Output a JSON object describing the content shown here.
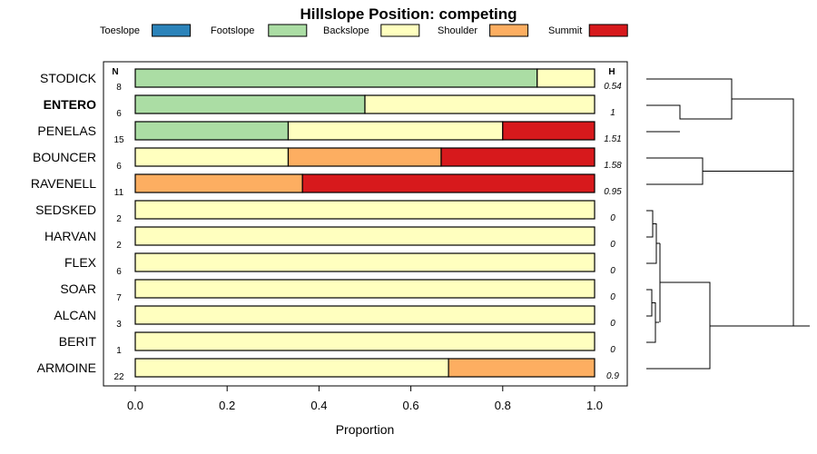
{
  "chart_data": {
    "type": "bar",
    "orientation": "horizontal",
    "stacked": true,
    "title": "Hillslope Position: competing",
    "xlabel": "Proportion",
    "xlim": [
      0,
      1
    ],
    "x_ticks": [
      "0.0",
      "0.2",
      "0.4",
      "0.6",
      "0.8",
      "1.0"
    ],
    "legend": {
      "placement": "top",
      "entries": [
        {
          "name": "Toeslope",
          "color": "#2b83ba"
        },
        {
          "name": "Footslope",
          "color": "#abdda4"
        },
        {
          "name": "Backslope",
          "color": "#ffffbf"
        },
        {
          "name": "Shoulder",
          "color": "#fdae61"
        },
        {
          "name": "Summit",
          "color": "#d7191c"
        }
      ]
    },
    "n_header": "N",
    "h_header": "H",
    "categories": [
      {
        "label": "STODICK",
        "n": "8",
        "h": "0.54",
        "bold": false,
        "values": [
          0,
          0.875,
          0.125,
          0,
          0
        ]
      },
      {
        "label": "ENTERO",
        "n": "6",
        "h": "1",
        "bold": true,
        "values": [
          0,
          0.5,
          0.5,
          0,
          0
        ]
      },
      {
        "label": "PENELAS",
        "n": "15",
        "h": "1.51",
        "bold": false,
        "values": [
          0,
          0.333,
          0.467,
          0,
          0.2
        ]
      },
      {
        "label": "BOUNCER",
        "n": "6",
        "h": "1.58",
        "bold": false,
        "values": [
          0,
          0,
          0.333,
          0.333,
          0.334
        ]
      },
      {
        "label": "RAVENELL",
        "n": "11",
        "h": "0.95",
        "bold": false,
        "values": [
          0,
          0,
          0,
          0.364,
          0.636
        ]
      },
      {
        "label": "SEDSKED",
        "n": "2",
        "h": "0",
        "bold": false,
        "values": [
          0,
          0,
          1,
          0,
          0
        ]
      },
      {
        "label": "HARVAN",
        "n": "2",
        "h": "0",
        "bold": false,
        "values": [
          0,
          0,
          1,
          0,
          0
        ]
      },
      {
        "label": "FLEX",
        "n": "6",
        "h": "0",
        "bold": false,
        "values": [
          0,
          0,
          1,
          0,
          0
        ]
      },
      {
        "label": "SOAR",
        "n": "7",
        "h": "0",
        "bold": false,
        "values": [
          0,
          0,
          1,
          0,
          0
        ]
      },
      {
        "label": "ALCAN",
        "n": "3",
        "h": "0",
        "bold": false,
        "values": [
          0,
          0,
          1,
          0,
          0
        ]
      },
      {
        "label": "BERIT",
        "n": "1",
        "h": "0",
        "bold": false,
        "values": [
          0,
          0,
          1,
          0,
          0
        ]
      },
      {
        "label": "ARMOINE",
        "n": "22",
        "h": "0.9",
        "bold": false,
        "values": [
          0,
          0,
          0.682,
          0.318,
          0
        ]
      }
    ],
    "grid": false,
    "dendrogram": {
      "placement": "right",
      "leaf_order": [
        "STODICK",
        "ENTERO",
        "PENELAS",
        "BOUNCER",
        "RAVENELL",
        "SEDSKED",
        "HARVAN",
        "FLEX",
        "SOAR",
        "ALCAN",
        "BERIT",
        "ARMOINE"
      ]
    }
  }
}
